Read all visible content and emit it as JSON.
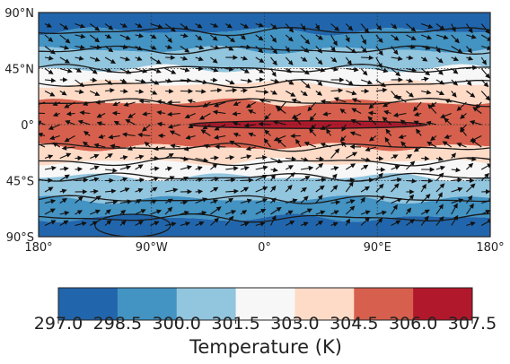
{
  "chart_data": {
    "type": "heatmap",
    "subtype": "filled-contour map with wind vectors",
    "projection": "equirectangular",
    "x_axis": {
      "range": [
        -180,
        180
      ],
      "ticks": [
        -180,
        -90,
        0,
        90,
        180
      ],
      "tick_labels": [
        "180°",
        "90°W",
        "0°",
        "90°E",
        "180°"
      ]
    },
    "y_axis": {
      "range": [
        -90,
        90
      ],
      "ticks": [
        90,
        45,
        0,
        -45,
        -90
      ],
      "tick_labels": [
        "90°N",
        "45°N",
        "0°",
        "45°S",
        "90°S"
      ]
    },
    "gridlines": "dotted meridians and parallels every 45°/90°",
    "colorbar": {
      "label": "Temperature (K)",
      "levels": [
        297.0,
        298.5,
        300.0,
        301.5,
        303.0,
        304.5,
        306.0,
        307.5
      ],
      "tick_labels": [
        "297.0",
        "298.5",
        "300.0",
        "301.5",
        "303.0",
        "304.5",
        "306.0",
        "307.5"
      ],
      "colors": [
        "#2166ac",
        "#4393c3",
        "#92c5de",
        "#f7f7f7",
        "#fddbc7",
        "#d6604d",
        "#b2182b"
      ],
      "cmap": "RdBu_r",
      "orientation": "horizontal"
    },
    "latitude_bands": [
      {
        "lat_range": [
          75,
          90
        ],
        "level": 297.75
      },
      {
        "lat_range": [
          60,
          75
        ],
        "level": 299.25
      },
      {
        "lat_range": [
          45,
          60
        ],
        "level": 300.75
      },
      {
        "lat_range": [
          33,
          45
        ],
        "level": 302.25
      },
      {
        "lat_range": [
          18,
          33
        ],
        "level": 303.75
      },
      {
        "lat_range": [
          -18,
          18
        ],
        "level": 305.25
      },
      {
        "lat_range": [
          -30,
          -18
        ],
        "level": 303.75
      },
      {
        "lat_range": [
          -42,
          -30
        ],
        "level": 302.25
      },
      {
        "lat_range": [
          -60,
          -42
        ],
        "level": 300.75
      },
      {
        "lat_range": [
          -75,
          -60
        ],
        "level": 299.25
      },
      {
        "lat_range": [
          -90,
          -75
        ],
        "level": 297.75
      }
    ],
    "features": [
      {
        "name": "equatorial maximum",
        "lon_range": [
          -60,
          130
        ],
        "lat_range": [
          -3,
          3
        ],
        "level": ">306.0"
      },
      {
        "name": "south polar minimum",
        "lon_range": [
          -135,
          -75
        ],
        "lat_range": [
          -90,
          -72
        ],
        "level": "<298.5"
      }
    ],
    "vector_field": "wind vectors, westerly in midlatitudes, strongest over western hemisphere"
  }
}
